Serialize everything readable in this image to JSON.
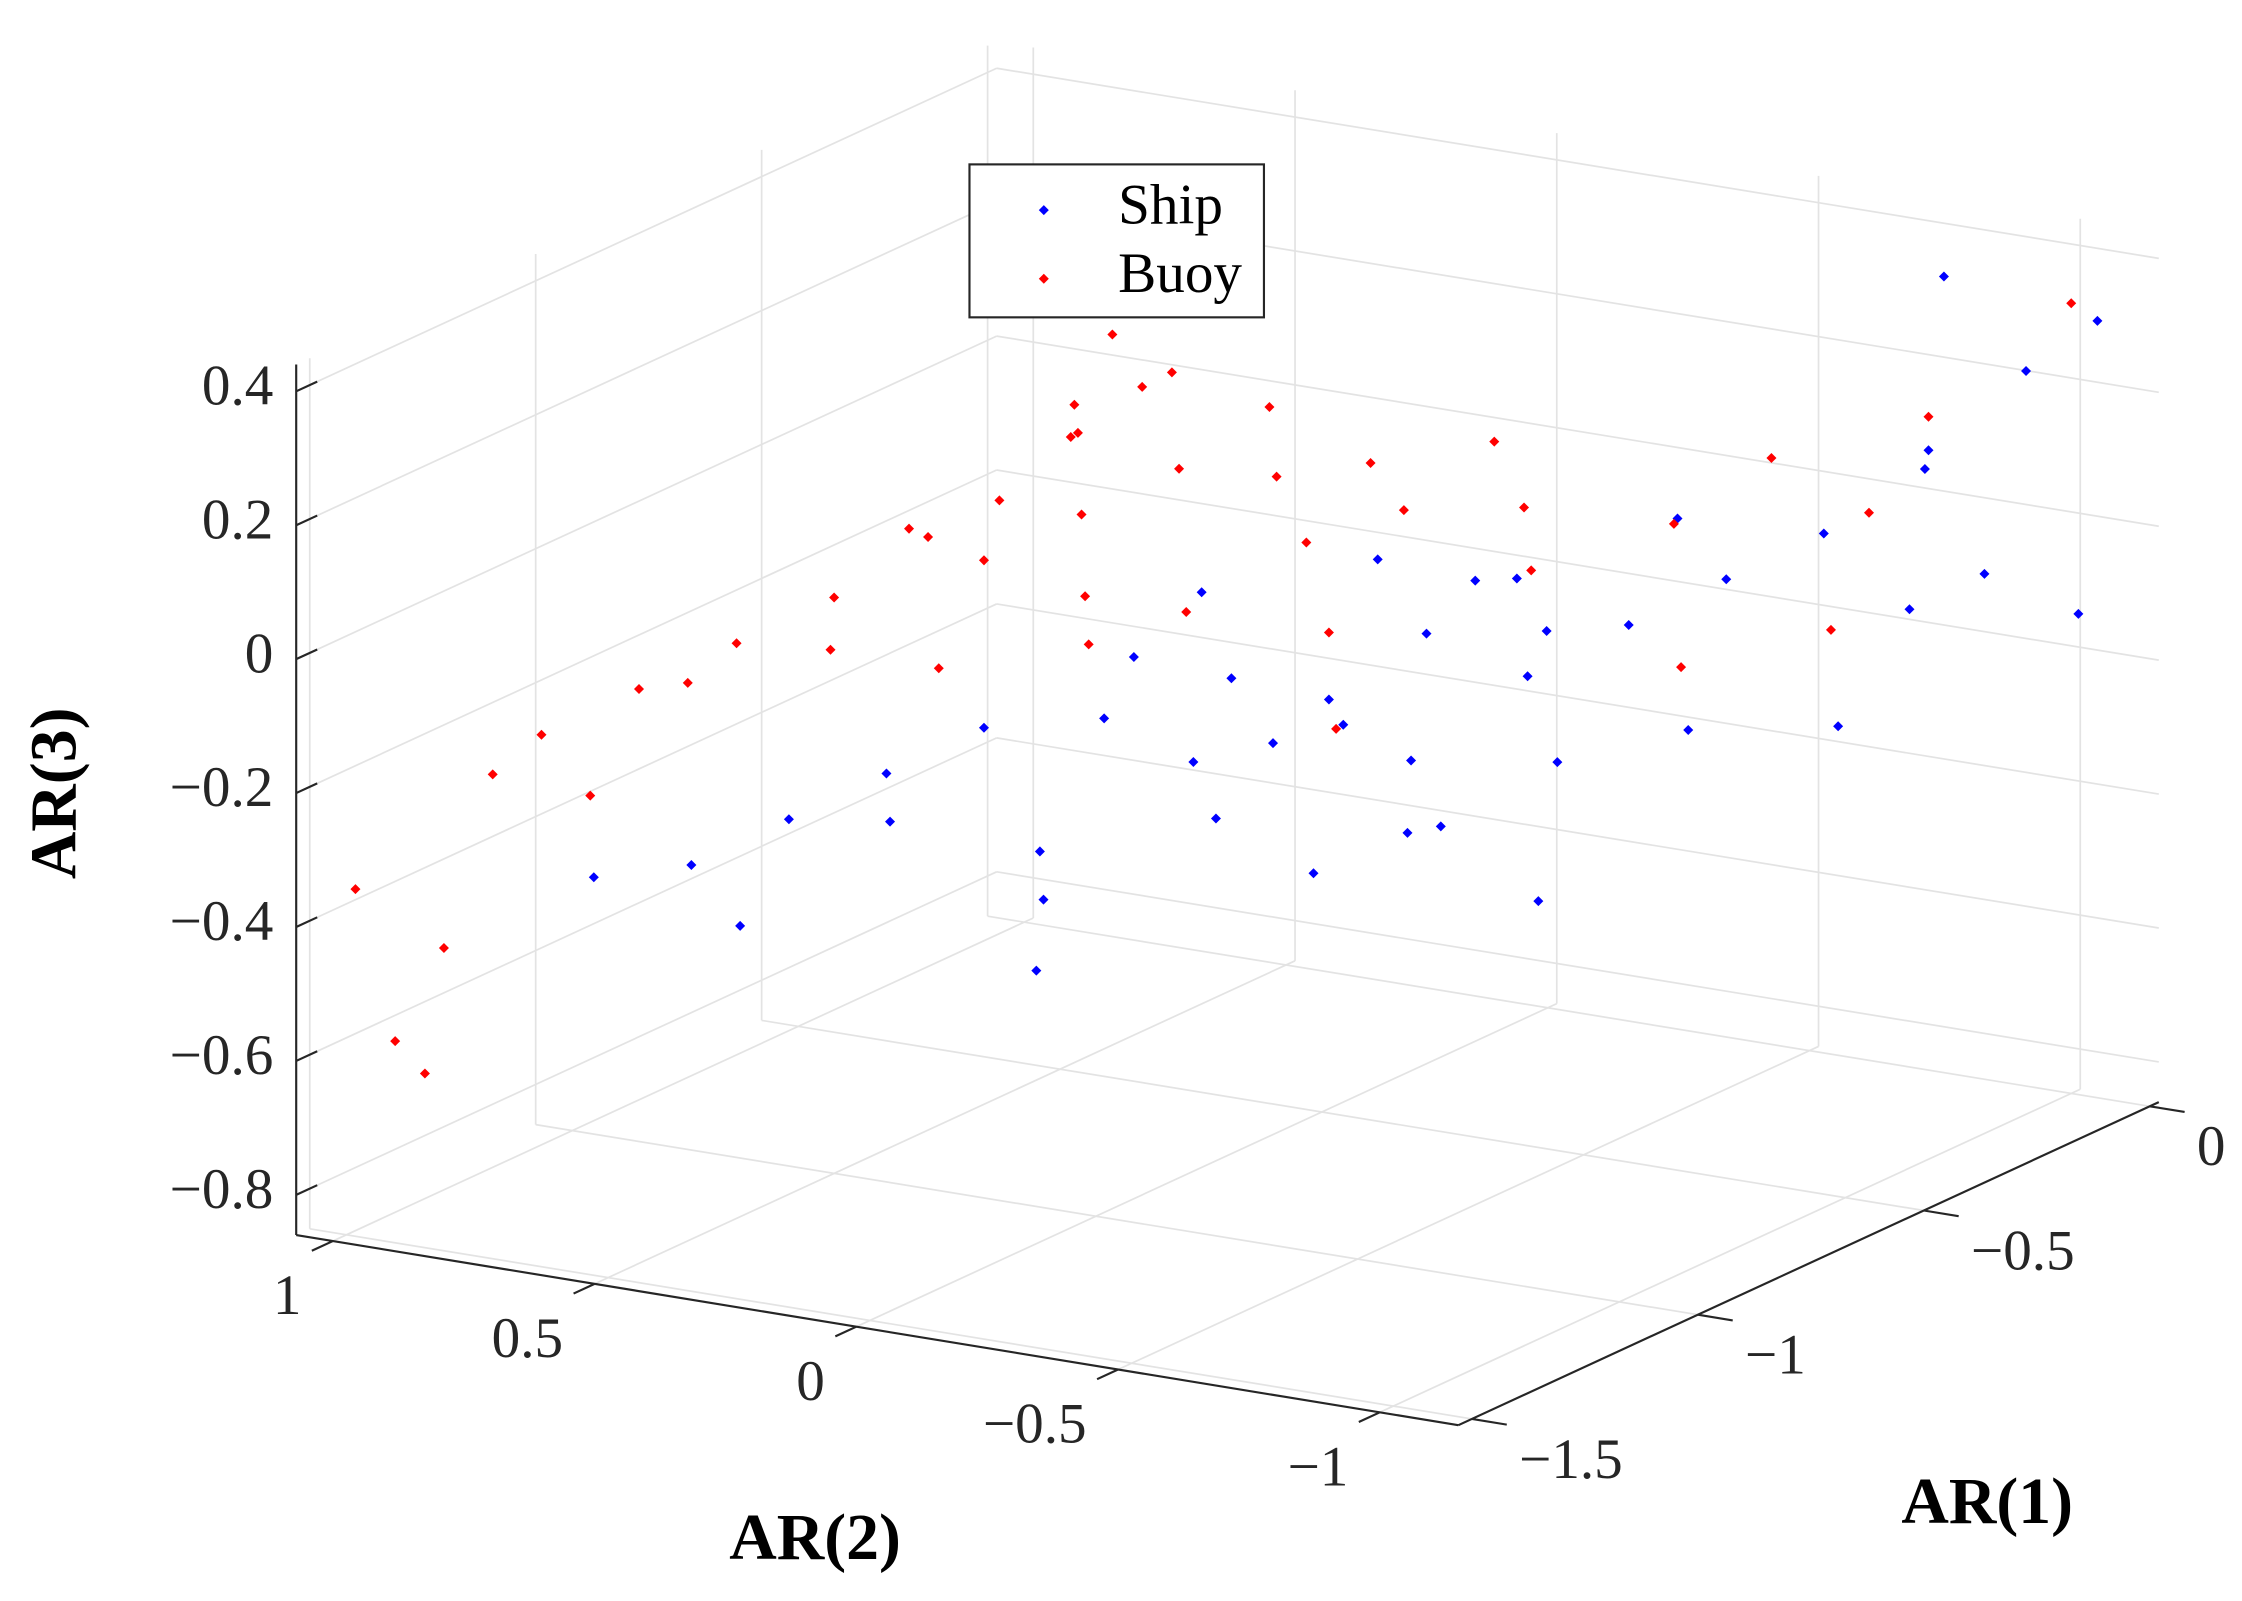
{
  "chart_data": {
    "type": "scatter3d",
    "xlabel": "AR(1)",
    "ylabel": "AR(2)",
    "zlabel": "AR(3)",
    "xlim": [
      -1.53,
      0.02
    ],
    "ylim": [
      -1.15,
      1.07
    ],
    "zlim": [
      -0.86,
      0.44
    ],
    "xticks": [
      {
        "value": -1.5,
        "label": "−1.5"
      },
      {
        "value": -1,
        "label": "−1"
      },
      {
        "value": -0.5,
        "label": "−0.5"
      },
      0
    ],
    "yticks": [
      {
        "value": -1,
        "label": "−1"
      },
      {
        "value": -0.5,
        "label": "−0.5"
      },
      0,
      0.5,
      1
    ],
    "zticks": [
      {
        "value": -0.8,
        "label": "−0.8"
      },
      {
        "value": -0.6,
        "label": "−0.6"
      },
      {
        "value": -0.4,
        "label": "−0.4"
      },
      {
        "value": -0.2,
        "label": "−0.2"
      },
      0,
      0.2,
      0.4
    ],
    "grid": true,
    "legend": "upper center",
    "series": [
      {
        "name": "Ship",
        "color": "#0000ff",
        "x": [
          -0.7,
          -0.6,
          -0.8,
          -0.5,
          -0.65,
          -0.75,
          -0.55,
          -0.45,
          -0.4,
          -0.3,
          -0.2,
          -0.35,
          -0.9,
          -1.0,
          -1.1,
          -1.2,
          -1.05,
          -0.85,
          -0.7,
          -0.6,
          -0.5,
          -0.95,
          -0.2,
          -0.1,
          0.0,
          -0.05,
          -0.15,
          -0.3,
          -0.1,
          -0.4,
          -0.25,
          -1.3,
          -1.15,
          -0.9,
          -0.6,
          -0.75,
          -0.65,
          -0.55,
          -0.45,
          -0.35,
          -0.8,
          -0.5,
          -0.3,
          -0.9,
          -1.0
        ],
        "y": [
          0.0,
          -0.1,
          0.1,
          -0.2,
          -0.3,
          0.2,
          0.05,
          -0.35,
          -0.5,
          -0.6,
          -0.7,
          -0.55,
          0.3,
          0.4,
          0.5,
          0.6,
          0.35,
          -0.1,
          -0.4,
          -0.25,
          -0.45,
          0.15,
          -0.9,
          -1.0,
          -1.05,
          -0.8,
          -0.85,
          -0.95,
          -1.1,
          -0.9,
          -1.05,
          0.7,
          0.55,
          0.2,
          -0.5,
          -0.2,
          0.1,
          -0.15,
          -0.25,
          -0.3,
          -0.3,
          -0.7,
          -0.2,
          -0.1,
          0.1
        ],
        "z": [
          -0.15,
          -0.2,
          -0.1,
          -0.12,
          -0.25,
          -0.22,
          -0.3,
          -0.18,
          -0.1,
          -0.05,
          0.0,
          0.05,
          -0.2,
          -0.25,
          -0.3,
          -0.35,
          -0.3,
          -0.3,
          -0.32,
          -0.38,
          -0.28,
          -0.35,
          0.15,
          0.25,
          0.3,
          0.35,
          0.1,
          -0.05,
          -0.1,
          -0.2,
          0.0,
          -0.35,
          -0.45,
          -0.55,
          -0.45,
          -0.4,
          -0.05,
          0.0,
          -0.05,
          -0.15,
          -0.15,
          -0.2,
          -0.1,
          -0.2,
          -0.4
        ]
      },
      {
        "name": "Buoy",
        "color": "#ff0000",
        "x": [
          -0.8,
          -0.7,
          -0.9,
          -0.6,
          -0.75,
          -0.65,
          -0.85,
          -0.55,
          -0.95,
          -1.0,
          -1.1,
          -1.2,
          -1.3,
          -1.35,
          -1.25,
          -1.15,
          -0.7,
          -0.6,
          -0.5,
          -0.45,
          -0.4,
          -0.5,
          -0.3,
          -0.35,
          -0.8,
          -0.9,
          -1.0,
          -0.75,
          -0.65,
          -0.55,
          -0.2,
          -0.1,
          -0.3,
          0.0,
          -1.5,
          -1.45,
          -1.4,
          -1.48,
          -0.95,
          -0.85,
          -0.2,
          -0.4,
          -0.6,
          -0.7,
          -0.5
        ],
        "y": [
          0.2,
          0.1,
          0.3,
          0.0,
          0.25,
          -0.1,
          0.15,
          -0.2,
          0.4,
          0.5,
          0.6,
          0.7,
          0.8,
          0.85,
          0.75,
          0.65,
          0.3,
          0.2,
          0.1,
          -0.05,
          -0.3,
          -0.4,
          -0.5,
          -0.2,
          0.0,
          0.1,
          0.3,
          0.4,
          0.35,
          0.3,
          -0.6,
          -0.7,
          -0.8,
          -1.0,
          0.85,
          0.95,
          0.9,
          1.0,
          0.55,
          0.45,
          -0.9,
          -0.6,
          -0.1,
          -0.2,
          0.4
        ],
        "z": [
          0.1,
          0.15,
          0.05,
          0.12,
          0.2,
          0.05,
          0.0,
          0.08,
          0.1,
          0.0,
          -0.05,
          -0.1,
          -0.15,
          -0.2,
          -0.25,
          -0.1,
          0.22,
          0.25,
          0.18,
          0.1,
          0.05,
          0.0,
          0.02,
          0.12,
          -0.02,
          -0.05,
          -0.08,
          0.08,
          0.15,
          0.2,
          0.1,
          0.0,
          -0.1,
          0.32,
          -0.6,
          -0.58,
          -0.45,
          -0.35,
          -0.1,
          0.05,
          0.2,
          -0.15,
          -0.1,
          -0.2,
          0.25
        ]
      }
    ]
  }
}
